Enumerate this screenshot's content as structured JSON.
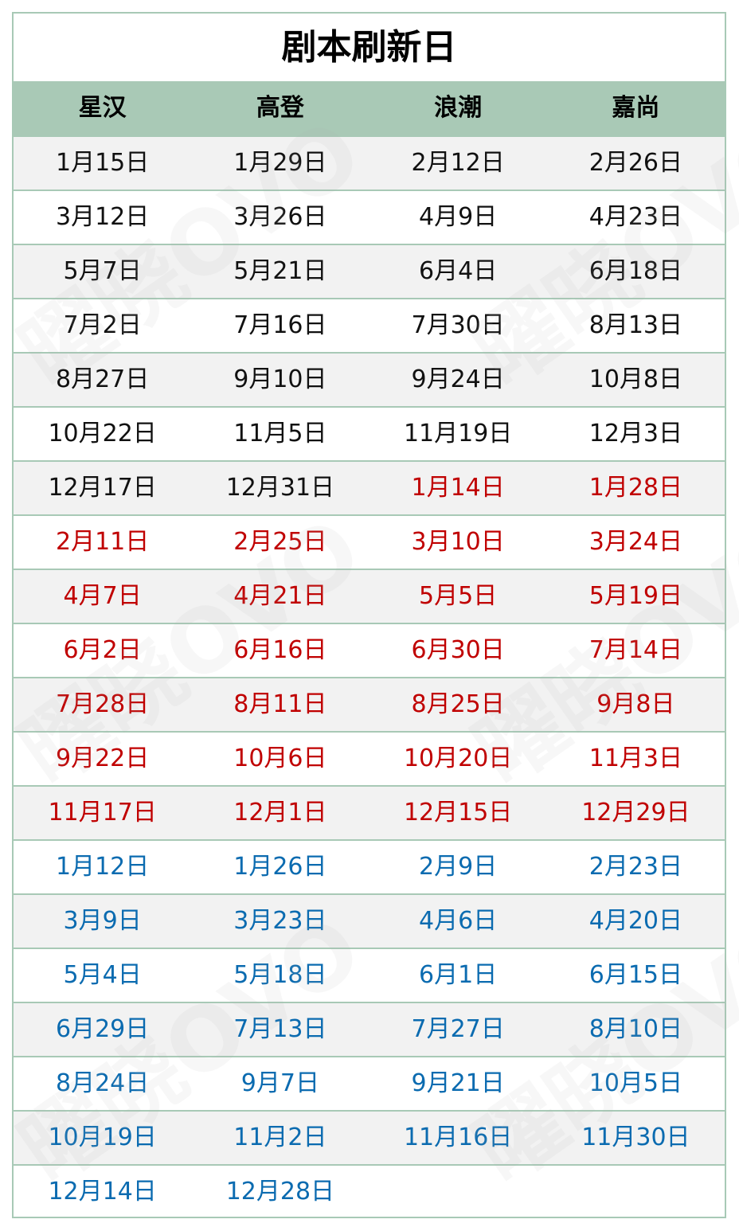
{
  "title": "剧本刷新日",
  "columns": [
    "星汉",
    "高登",
    "浪潮",
    "嘉尚"
  ],
  "watermark": "曜晓OVO",
  "colors": {
    "black": "#111111",
    "red": "#c00000",
    "blue": "#0b6bb0",
    "header_bg": "#a9c9b6",
    "border": "#a8c9b6"
  },
  "rows": [
    {
      "cells": [
        "1月15日",
        "1月29日",
        "2月12日",
        "2月26日"
      ],
      "colors": [
        "black",
        "black",
        "black",
        "black"
      ]
    },
    {
      "cells": [
        "3月12日",
        "3月26日",
        "4月9日",
        "4月23日"
      ],
      "colors": [
        "black",
        "black",
        "black",
        "black"
      ]
    },
    {
      "cells": [
        "5月7日",
        "5月21日",
        "6月4日",
        "6月18日"
      ],
      "colors": [
        "black",
        "black",
        "black",
        "black"
      ]
    },
    {
      "cells": [
        "7月2日",
        "7月16日",
        "7月30日",
        "8月13日"
      ],
      "colors": [
        "black",
        "black",
        "black",
        "black"
      ]
    },
    {
      "cells": [
        "8月27日",
        "9月10日",
        "9月24日",
        "10月8日"
      ],
      "colors": [
        "black",
        "black",
        "black",
        "black"
      ]
    },
    {
      "cells": [
        "10月22日",
        "11月5日",
        "11月19日",
        "12月3日"
      ],
      "colors": [
        "black",
        "black",
        "black",
        "black"
      ]
    },
    {
      "cells": [
        "12月17日",
        "12月31日",
        "1月14日",
        "1月28日"
      ],
      "colors": [
        "black",
        "black",
        "red",
        "red"
      ]
    },
    {
      "cells": [
        "2月11日",
        "2月25日",
        "3月10日",
        "3月24日"
      ],
      "colors": [
        "red",
        "red",
        "red",
        "red"
      ]
    },
    {
      "cells": [
        "4月7日",
        "4月21日",
        "5月5日",
        "5月19日"
      ],
      "colors": [
        "red",
        "red",
        "red",
        "red"
      ]
    },
    {
      "cells": [
        "6月2日",
        "6月16日",
        "6月30日",
        "7月14日"
      ],
      "colors": [
        "red",
        "red",
        "red",
        "red"
      ]
    },
    {
      "cells": [
        "7月28日",
        "8月11日",
        "8月25日",
        "9月8日"
      ],
      "colors": [
        "red",
        "red",
        "red",
        "red"
      ]
    },
    {
      "cells": [
        "9月22日",
        "10月6日",
        "10月20日",
        "11月3日"
      ],
      "colors": [
        "red",
        "red",
        "red",
        "red"
      ]
    },
    {
      "cells": [
        "11月17日",
        "12月1日",
        "12月15日",
        "12月29日"
      ],
      "colors": [
        "red",
        "red",
        "red",
        "red"
      ]
    },
    {
      "cells": [
        "1月12日",
        "1月26日",
        "2月9日",
        "2月23日"
      ],
      "colors": [
        "blue",
        "blue",
        "blue",
        "blue"
      ]
    },
    {
      "cells": [
        "3月9日",
        "3月23日",
        "4月6日",
        "4月20日"
      ],
      "colors": [
        "blue",
        "blue",
        "blue",
        "blue"
      ]
    },
    {
      "cells": [
        "5月4日",
        "5月18日",
        "6月1日",
        "6月15日"
      ],
      "colors": [
        "blue",
        "blue",
        "blue",
        "blue"
      ]
    },
    {
      "cells": [
        "6月29日",
        "7月13日",
        "7月27日",
        "8月10日"
      ],
      "colors": [
        "blue",
        "blue",
        "blue",
        "blue"
      ]
    },
    {
      "cells": [
        "8月24日",
        "9月7日",
        "9月21日",
        "10月5日"
      ],
      "colors": [
        "blue",
        "blue",
        "blue",
        "blue"
      ]
    },
    {
      "cells": [
        "10月19日",
        "11月2日",
        "11月16日",
        "11月30日"
      ],
      "colors": [
        "blue",
        "blue",
        "blue",
        "blue"
      ]
    },
    {
      "cells": [
        "12月14日",
        "12月28日",
        "",
        ""
      ],
      "colors": [
        "blue",
        "blue",
        "blue",
        "blue"
      ]
    }
  ]
}
